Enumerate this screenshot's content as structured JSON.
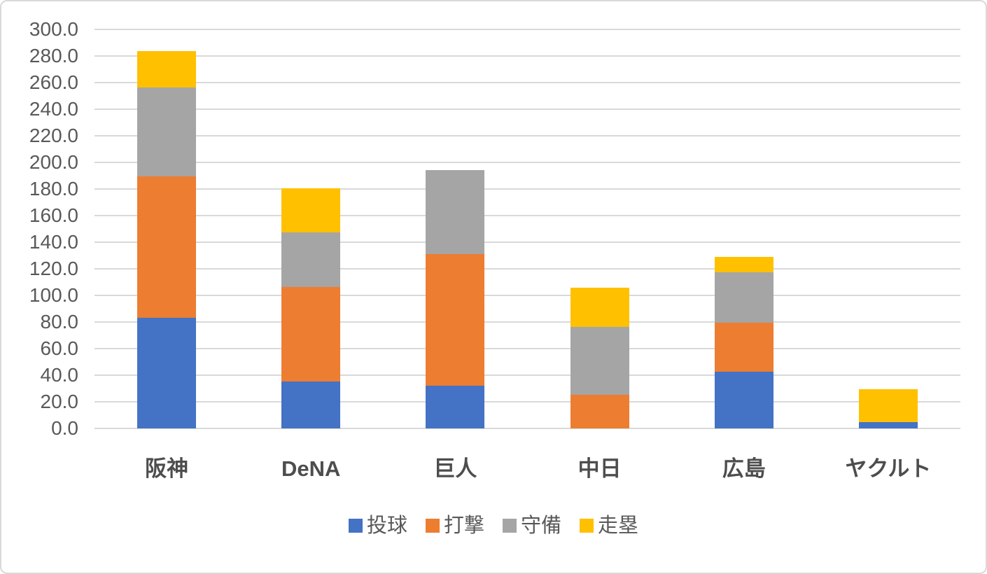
{
  "chart_data": {
    "type": "bar",
    "stacked": true,
    "title": "",
    "xlabel": "",
    "ylabel": "",
    "categories": [
      "阪神",
      "DeNA",
      "巨人",
      "中日",
      "広島",
      "ヤクルト"
    ],
    "series": [
      {
        "name": "投球",
        "key": "pitching",
        "color": "#4472C4",
        "values": [
          83.4,
          35.4,
          32.0,
          0.0,
          42.9,
          4.7
        ]
      },
      {
        "name": "打撃",
        "key": "batting",
        "color": "#ED7D31",
        "values": [
          106.1,
          70.9,
          99.1,
          25.4,
          36.8,
          0.0
        ]
      },
      {
        "name": "守備",
        "key": "fielding",
        "color": "#A5A5A5",
        "values": [
          66.6,
          41.1,
          63.1,
          51.0,
          37.9,
          0.0
        ]
      },
      {
        "name": "走塁",
        "key": "baserunning",
        "color": "#FFC000",
        "values": [
          27.7,
          32.9,
          0.0,
          29.3,
          11.5,
          24.9
        ]
      }
    ],
    "ylim": [
      0,
      300
    ],
    "ytick_step": 20,
    "ytick_labels": [
      "0.0",
      "20.0",
      "40.0",
      "60.0",
      "80.0",
      "100.0",
      "120.0",
      "140.0",
      "160.0",
      "180.0",
      "200.0",
      "220.0",
      "240.0",
      "260.0",
      "280.0",
      "300.0"
    ],
    "grid": true,
    "legend_position": "bottom"
  },
  "colors": {
    "background": "#ffffff",
    "frame_border": "#d9d9d9",
    "gridline": "#d9d9d9",
    "axis_text": "#595959",
    "category_text": "#4d4d4d"
  }
}
